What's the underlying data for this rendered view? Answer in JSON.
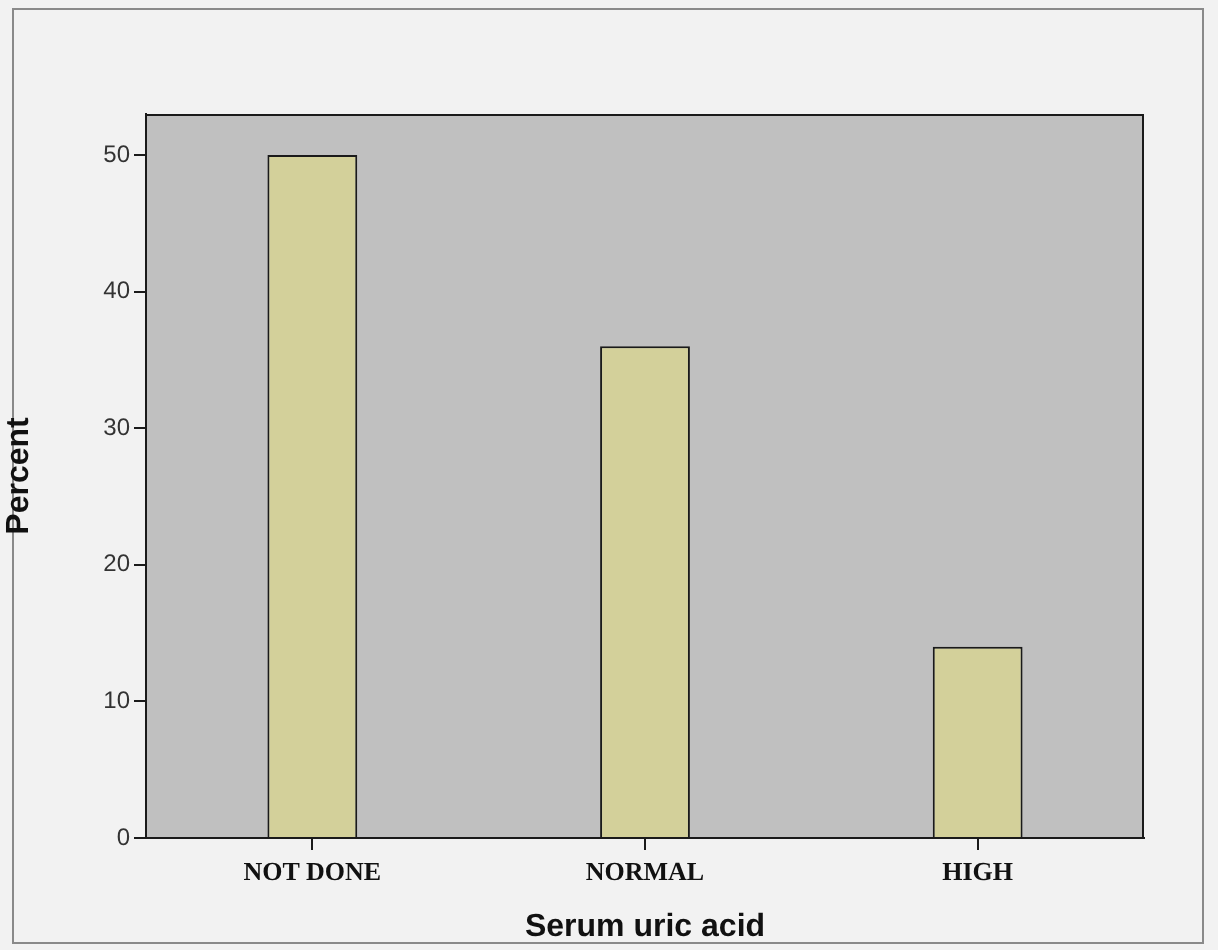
{
  "chart_data": {
    "type": "bar",
    "xlabel": "Serum uric acid",
    "ylabel": "Percent",
    "categories": [
      "NOT DONE",
      "NORMAL",
      "HIGH"
    ],
    "values": [
      50,
      36,
      14
    ],
    "color": "#d3d09a",
    "ylim": [
      0,
      53
    ],
    "yticks": [
      0,
      10,
      20,
      30,
      40,
      50
    ],
    "grid": false
  }
}
